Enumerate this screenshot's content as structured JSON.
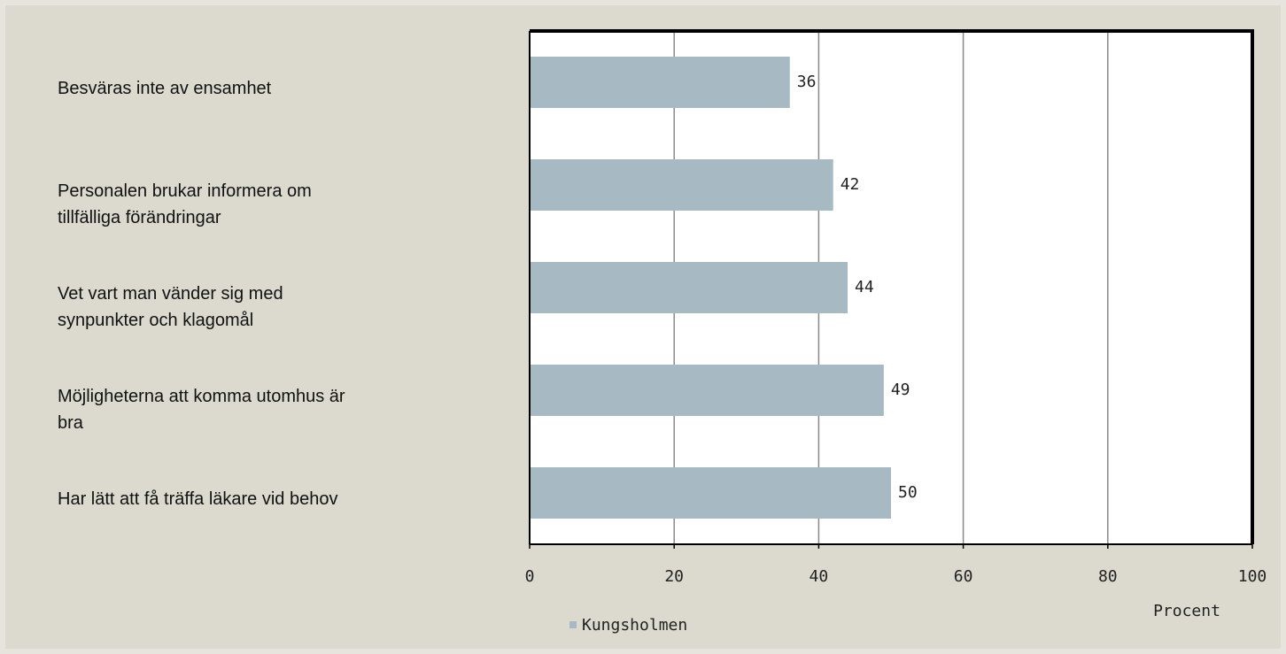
{
  "chart_data": {
    "type": "bar",
    "orientation": "horizontal",
    "categories": [
      "Besväras inte av ensamhet",
      "Personalen brukar informera om\ntillfälliga förändringar",
      "Vet vart man vänder sig med\nsynpunkter och klagomål",
      "Möjligheterna att komma utomhus är\nbra",
      "Har lätt att få träffa läkare vid behov"
    ],
    "series": [
      {
        "name": "Kungsholmen",
        "color": "#a7bac4",
        "values": [
          36,
          42,
          44,
          49,
          50
        ]
      }
    ],
    "xlabel": "Procent",
    "xlim": [
      0,
      100
    ],
    "xticks": [
      0,
      20,
      40,
      60,
      80,
      100
    ],
    "grid": true,
    "legend": "bottom"
  }
}
